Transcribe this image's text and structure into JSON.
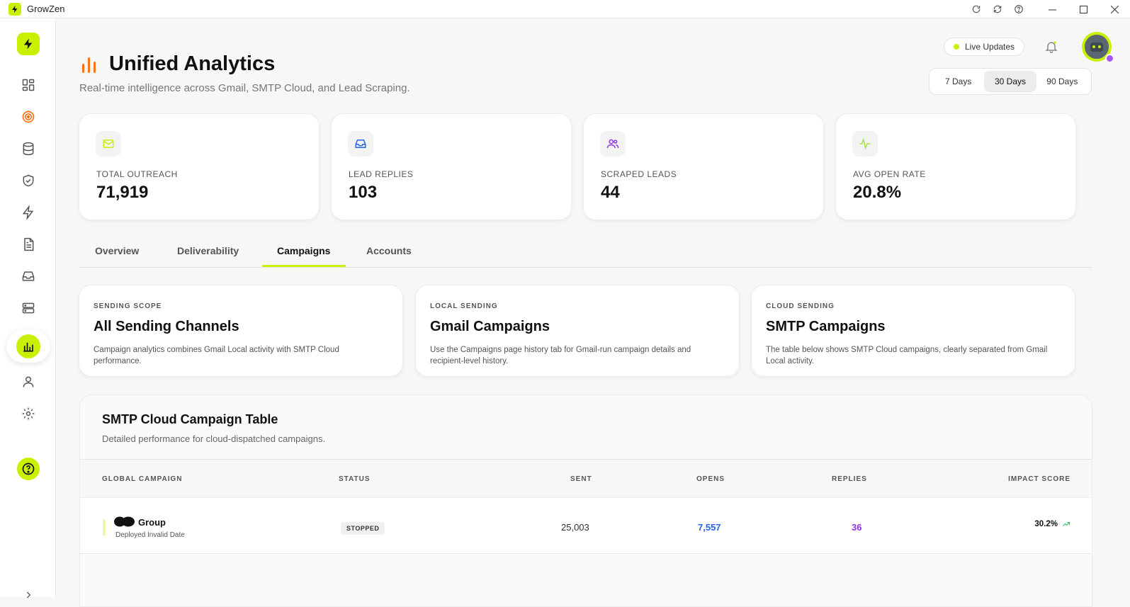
{
  "window": {
    "title": "GrowZen"
  },
  "header": {
    "title": "Unified Analytics",
    "subtitle": "Real-time intelligence across Gmail, SMTP Cloud, and Lead Scraping.",
    "live_label": "Live Updates",
    "range_options": [
      "7 Days",
      "30 Days",
      "90 Days"
    ],
    "range_selected": "30 Days"
  },
  "stats": [
    {
      "label": "TOTAL OUTREACH",
      "value": "71,919",
      "icon": "mail-icon",
      "color": "#c8f000"
    },
    {
      "label": "LEAD REPLIES",
      "value": "103",
      "icon": "inbox-icon",
      "color": "#2563eb"
    },
    {
      "label": "SCRAPED LEADS",
      "value": "44",
      "icon": "users-icon",
      "color": "#9333ea"
    },
    {
      "label": "AVG OPEN RATE",
      "value": "20.8%",
      "icon": "activity-icon",
      "color": "#a3e635"
    }
  ],
  "tabs": [
    "Overview",
    "Deliverability",
    "Campaigns",
    "Accounts"
  ],
  "active_tab": "Campaigns",
  "scopes": [
    {
      "kicker": "SENDING SCOPE",
      "heading": "All Sending Channels",
      "desc": "Campaign analytics combines Gmail Local activity with SMTP Cloud performance."
    },
    {
      "kicker": "LOCAL SENDING",
      "heading": "Gmail Campaigns",
      "desc": "Use the Campaigns page history tab for Gmail-run campaign details and recipient-level history."
    },
    {
      "kicker": "CLOUD SENDING",
      "heading": "SMTP Campaigns",
      "desc": "The table below shows SMTP Cloud campaigns, clearly separated from Gmail Local activity."
    }
  ],
  "table": {
    "title": "SMTP Cloud Campaign Table",
    "subtitle": "Detailed performance for cloud-dispatched campaigns.",
    "columns": [
      "GLOBAL CAMPAIGN",
      "STATUS",
      "SENT",
      "OPENS",
      "REPLIES",
      "IMPACT SCORE"
    ],
    "rows": [
      {
        "name": "Group",
        "meta": "Deployed Invalid Date",
        "status": "STOPPED",
        "sent": "25,003",
        "opens": "7,557",
        "replies": "36",
        "impact": "30.2%"
      }
    ]
  },
  "colors": {
    "accent": "#c8f000",
    "opens": "#2563eb",
    "replies": "#9333ea",
    "trend": "#22c55e"
  }
}
